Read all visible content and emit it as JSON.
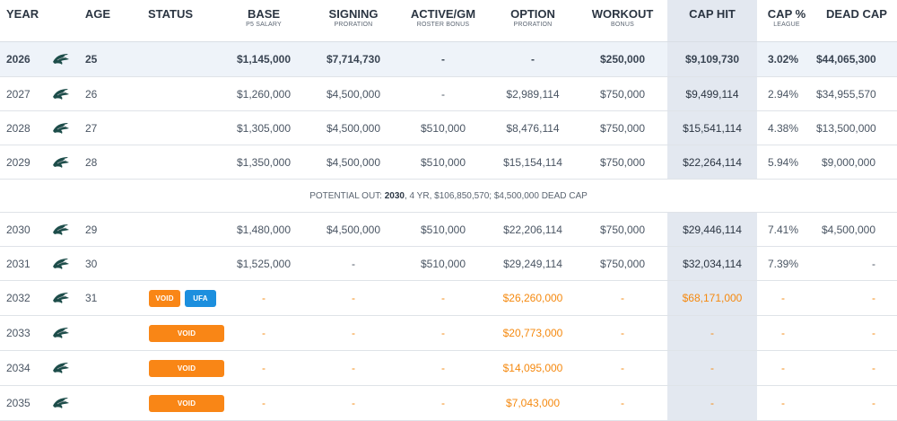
{
  "headers": {
    "year": "YEAR",
    "age": "AGE",
    "status": "STATUS",
    "base": "BASE",
    "base_sub": "P5 SALARY",
    "signing": "SIGNING",
    "signing_sub": "PRORATION",
    "active": "ACTIVE/GM",
    "active_sub": "ROSTER BONUS",
    "option": "OPTION",
    "option_sub": "PRORATION",
    "workout": "WORKOUT",
    "workout_sub": "BONUS",
    "cap_hit": "CAP HIT",
    "cap_pct": "CAP %",
    "cap_pct_sub": "LEAGUE",
    "dead_cap": "DEAD CAP"
  },
  "logo_icon": "eagles-logo-icon",
  "colors": {
    "accent_orange": "#f5890f",
    "void_badge": "#f98616",
    "ufa_badge": "#1c8fde",
    "cap_column": "#e3e8f0",
    "current_row": "#eef3f9"
  },
  "rows": [
    {
      "year": "2026",
      "age": "25",
      "base": "$1,145,000",
      "signing": "$7,714,730",
      "active": "-",
      "option": "-",
      "workout": "$250,000",
      "cap_hit": "$9,109,730",
      "cap_pct": "3.02%",
      "dead_cap": "$44,065,300"
    },
    {
      "year": "2027",
      "age": "26",
      "base": "$1,260,000",
      "signing": "$4,500,000",
      "active": "-",
      "option": "$2,989,114",
      "workout": "$750,000",
      "cap_hit": "$9,499,114",
      "cap_pct": "2.94%",
      "dead_cap": "$34,955,570"
    },
    {
      "year": "2028",
      "age": "27",
      "base": "$1,305,000",
      "signing": "$4,500,000",
      "active": "$510,000",
      "option": "$8,476,114",
      "workout": "$750,000",
      "cap_hit": "$15,541,114",
      "cap_pct": "4.38%",
      "dead_cap": "$13,500,000"
    },
    {
      "year": "2029",
      "age": "28",
      "base": "$1,350,000",
      "signing": "$4,500,000",
      "active": "$510,000",
      "option": "$15,154,114",
      "workout": "$750,000",
      "cap_hit": "$22,264,114",
      "cap_pct": "5.94%",
      "dead_cap": "$9,000,000"
    },
    {
      "year": "2030",
      "age": "29",
      "base": "$1,480,000",
      "signing": "$4,500,000",
      "active": "$510,000",
      "option": "$22,206,114",
      "workout": "$750,000",
      "cap_hit": "$29,446,114",
      "cap_pct": "7.41%",
      "dead_cap": "$4,500,000"
    },
    {
      "year": "2031",
      "age": "30",
      "base": "$1,525,000",
      "signing": "-",
      "active": "$510,000",
      "option": "$29,249,114",
      "workout": "$750,000",
      "cap_hit": "$32,034,114",
      "cap_pct": "7.39%",
      "dead_cap": "-"
    },
    {
      "year": "2032",
      "age": "31",
      "badge1": "VOID",
      "badge2": "UFA",
      "base": "-",
      "signing": "-",
      "active": "-",
      "option": "$26,260,000",
      "workout": "-",
      "cap_hit": "$68,171,000",
      "cap_pct": "-",
      "dead_cap": "-"
    },
    {
      "year": "2033",
      "age": "",
      "badge1": "VOID",
      "base": "-",
      "signing": "-",
      "active": "-",
      "option": "$20,773,000",
      "workout": "-",
      "cap_hit": "-",
      "cap_pct": "-",
      "dead_cap": "-"
    },
    {
      "year": "2034",
      "age": "",
      "badge1": "VOID",
      "base": "-",
      "signing": "-",
      "active": "-",
      "option": "$14,095,000",
      "workout": "-",
      "cap_hit": "-",
      "cap_pct": "-",
      "dead_cap": "-"
    },
    {
      "year": "2035",
      "age": "",
      "badge1": "VOID",
      "base": "-",
      "signing": "-",
      "active": "-",
      "option": "$7,043,000",
      "workout": "-",
      "cap_hit": "-",
      "cap_pct": "-",
      "dead_cap": "-"
    }
  ],
  "potential_out": {
    "prefix": "POTENTIAL OUT: ",
    "year": "2030",
    "suffix": ", 4 YR, $106,850,570; $4,500,000 DEAD CAP"
  }
}
